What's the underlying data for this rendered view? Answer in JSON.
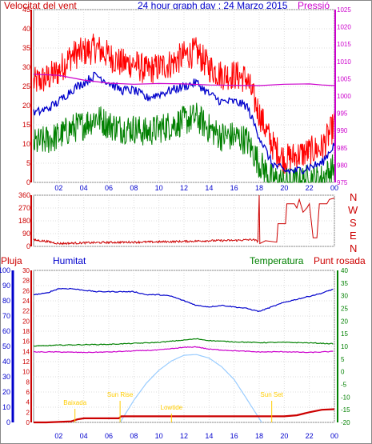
{
  "header": {
    "wind_label": "Velocitat del vent",
    "graph_title": "24 hour graph day : 24 Marzo 2015",
    "pressure_label": "Pressió"
  },
  "lower_labels": {
    "rain": "Pluja",
    "humidity": "Humitat",
    "temperature": "Temperatura",
    "dewpoint": "Punt rosada"
  },
  "direction_letters": [
    "N",
    "W",
    "S",
    "E",
    "N"
  ],
  "colors": {
    "wind_gust": "#ff0000",
    "wind_avg": "#0000cc",
    "wind_min": "#008000",
    "pressure": "#cc00cc",
    "direction": "#cc0000",
    "humidity": "#0000cc",
    "temperature": "#008000",
    "dewpoint": "#cc00cc",
    "solar": "#99ccff",
    "rain": "#cc0000",
    "events": "#ffcc00"
  },
  "chart_data": [
    {
      "type": "line",
      "panel": "wind_pressure",
      "x_ticks": [
        "02",
        "04",
        "06",
        "08",
        "10",
        "12",
        "14",
        "16",
        "18",
        "20",
        "22",
        "00"
      ],
      "y_left_ticks": [
        "0",
        "5",
        "10",
        "15",
        "20",
        "25",
        "30",
        "35",
        "40",
        "45"
      ],
      "y_right_ticks": [
        "975",
        "980",
        "985",
        "990",
        "995",
        "1000",
        "1005",
        "1010",
        "1015",
        "1020",
        "1025"
      ],
      "ylim_left": [
        0,
        45
      ],
      "ylim_right": [
        975,
        1025
      ],
      "xlim_hours": [
        0,
        24
      ],
      "grid": true,
      "series": [
        {
          "name": "Velocitat del vent",
          "role": "gust",
          "x": [
            0,
            1,
            2,
            3,
            4,
            5,
            6,
            7,
            8,
            9,
            10,
            11,
            12,
            13,
            14,
            15,
            16,
            17,
            18,
            19,
            20,
            21,
            22,
            23,
            24
          ],
          "values": [
            26,
            27,
            29,
            33,
            34,
            35,
            33,
            31,
            31,
            29,
            30,
            31,
            33,
            34,
            30,
            28,
            28,
            27,
            18,
            10,
            6,
            7,
            8,
            9,
            15
          ]
        },
        {
          "name": "",
          "role": "average",
          "x": [
            0,
            1,
            2,
            3,
            4,
            5,
            6,
            7,
            8,
            9,
            10,
            11,
            12,
            13,
            14,
            15,
            16,
            17,
            18,
            19,
            20,
            21,
            22,
            23,
            24
          ],
          "values": [
            18,
            19,
            21,
            24,
            26,
            28,
            26,
            24,
            24,
            22,
            23,
            24,
            25,
            26,
            23,
            21,
            21,
            20,
            12,
            5,
            3,
            3,
            4,
            5,
            10
          ]
        },
        {
          "name": "",
          "role": "minimum",
          "x": [
            0,
            1,
            2,
            3,
            4,
            5,
            6,
            7,
            8,
            9,
            10,
            11,
            12,
            13,
            14,
            15,
            16,
            17,
            18,
            19,
            20,
            21,
            22,
            23,
            24
          ],
          "values": [
            10,
            11,
            12,
            14,
            15,
            17,
            15,
            14,
            14,
            13,
            14,
            15,
            16,
            17,
            14,
            12,
            12,
            11,
            5,
            1,
            0,
            0,
            1,
            1,
            4
          ]
        },
        {
          "name": "Pressió",
          "role": "pressure",
          "x": [
            0,
            2,
            4,
            6,
            8,
            10,
            12,
            14,
            16,
            18,
            20,
            22,
            23,
            24
          ],
          "values": [
            1006.3,
            1006.0,
            1004.6,
            1003.7,
            1003.4,
            1003.6,
            1003.5,
            1003.2,
            1003.1,
            1003.0,
            1003.4,
            1003.5,
            1003.2,
            1003.0
          ]
        }
      ]
    },
    {
      "type": "line",
      "panel": "wind_direction",
      "x_ticks": [
        "02",
        "04",
        "06",
        "08",
        "10",
        "12",
        "14",
        "16",
        "18",
        "20",
        "22",
        "00"
      ],
      "y_ticks": [
        "0",
        "90",
        "180",
        "270",
        "360"
      ],
      "ylim": [
        0,
        360
      ],
      "grid": true,
      "series": [
        {
          "name": "",
          "x": [
            0,
            1,
            2,
            4,
            6,
            8,
            10,
            12,
            14,
            16,
            17.5,
            17.9,
            18.0,
            18.5,
            19.5,
            20.2,
            21,
            21.8,
            22.5,
            23.5,
            24
          ],
          "values": [
            45,
            36,
            20,
            25,
            28,
            30,
            32,
            35,
            40,
            42,
            48,
            35,
            360,
            40,
            30,
            160,
            300,
            240,
            60,
            300,
            330
          ]
        }
      ]
    },
    {
      "type": "line",
      "panel": "humidity_temperature",
      "x_ticks": [
        "02",
        "04",
        "06",
        "08",
        "10",
        "12",
        "14",
        "16",
        "18",
        "20",
        "22",
        "00"
      ],
      "y_left_ticks": [
        "0",
        "10",
        "20",
        "30",
        "40",
        "50",
        "60",
        "70",
        "80",
        "90",
        "100"
      ],
      "y_rain_ticks": [
        "0",
        "2",
        "4",
        "6",
        "8",
        "10",
        "12",
        "14",
        "16",
        "18",
        "20",
        "22",
        "24",
        "26",
        "28",
        "30"
      ],
      "y_right_ticks": [
        "-20",
        "-15",
        "-10",
        "-5",
        "0",
        "5",
        "10",
        "15",
        "20",
        "25",
        "30",
        "35",
        "40"
      ],
      "ylim_left": [
        0,
        100
      ],
      "ylim_rain": [
        0,
        30
      ],
      "ylim_right": [
        -20,
        40
      ],
      "grid": true,
      "events": [
        {
          "label": "Baixada",
          "hour": 3.3
        },
        {
          "label": "Sun Rise",
          "hour": 6.9
        },
        {
          "label": "Lowtide",
          "hour": 11.0
        },
        {
          "label": "Sun Set",
          "hour": 19.0
        }
      ],
      "series": [
        {
          "name": "Humitat",
          "x": [
            0,
            1,
            2,
            3,
            4,
            5,
            6,
            7,
            8,
            9,
            10,
            11,
            12,
            13,
            14,
            15,
            16,
            17,
            18,
            19,
            20,
            21,
            22,
            23,
            24
          ],
          "values": [
            84,
            85,
            88,
            88,
            87,
            86,
            86,
            86,
            86,
            84,
            84,
            83,
            80,
            77,
            76,
            77,
            76,
            75,
            73,
            76,
            79,
            81,
            83,
            85,
            88
          ]
        },
        {
          "name": "Temperatura",
          "x": [
            0,
            2,
            4,
            6,
            8,
            10,
            12,
            13,
            14,
            16,
            18,
            20,
            22,
            24
          ],
          "values": [
            10.1,
            10.5,
            10.7,
            10.8,
            11.2,
            11.6,
            12.5,
            13.0,
            12.3,
            11.8,
            11.5,
            11.6,
            11.4,
            11.0
          ]
        },
        {
          "name": "Punt rosada",
          "x": [
            0,
            2,
            4,
            6,
            8,
            10,
            12,
            13,
            14,
            16,
            18,
            20,
            22,
            24
          ],
          "values": [
            7.8,
            7.8,
            7.6,
            7.8,
            8.2,
            8.6,
            9.6,
            9.8,
            8.9,
            8.3,
            7.8,
            7.9,
            7.6,
            8.0
          ]
        },
        {
          "name": "",
          "role": "solar",
          "x": [
            6.9,
            8,
            9,
            10,
            11,
            12,
            13,
            14,
            15,
            16,
            17,
            18.2
          ],
          "values": [
            0,
            31,
            55,
            73,
            86,
            94,
            95,
            90,
            78,
            60,
            33,
            0
          ]
        },
        {
          "name": "Pluja",
          "x": [
            0,
            1,
            2,
            3,
            3.5,
            4,
            5,
            6,
            6.8,
            7,
            10,
            18.5,
            19,
            20,
            21,
            22,
            23,
            24
          ],
          "values": [
            0,
            0,
            0.1,
            0.2,
            0.6,
            0.8,
            0.8,
            0.8,
            0.8,
            1.2,
            1.2,
            1.2,
            1.2,
            1.2,
            1.4,
            2.0,
            2.5,
            2.6
          ]
        }
      ]
    }
  ]
}
